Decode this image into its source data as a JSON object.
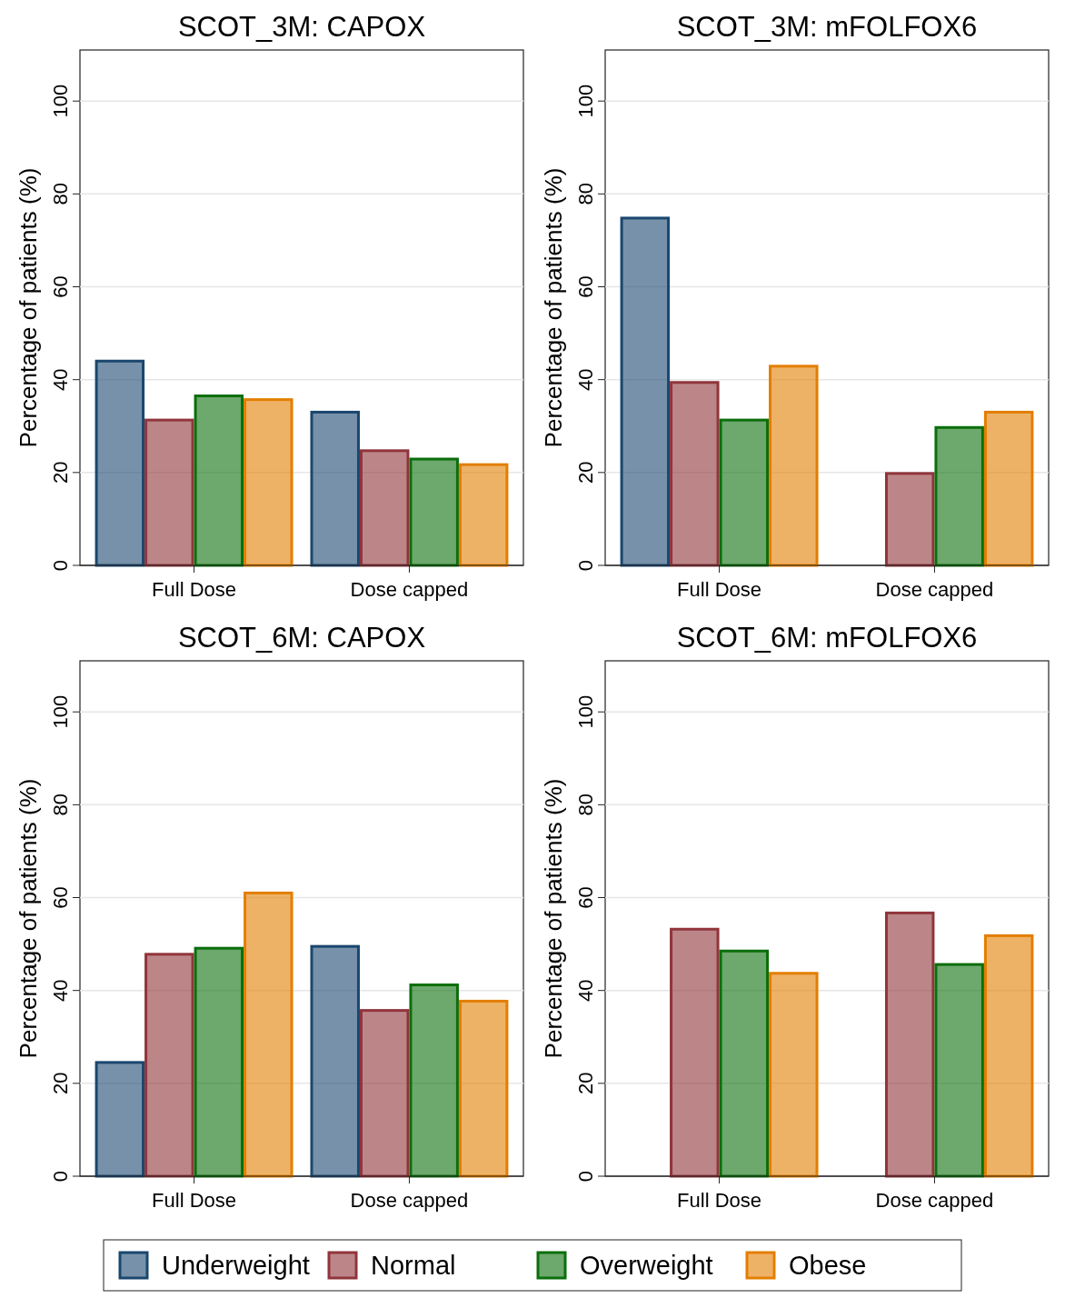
{
  "chart_data": [
    {
      "type": "bar",
      "title": "SCOT_3M: CAPOX",
      "ylabel": "Percentage of patients (%)",
      "categories": [
        "Full Dose",
        "Dose capped"
      ],
      "ylim": [
        0,
        111
      ],
      "yticks": [
        0,
        20,
        40,
        60,
        80,
        100
      ],
      "grid": "y",
      "legend": "bottom",
      "series": [
        {
          "name": "Underweight",
          "color": "#1a476f",
          "values": [
            44,
            33
          ]
        },
        {
          "name": "Normal",
          "color": "#90353b",
          "values": [
            31.3,
            24.7
          ]
        },
        {
          "name": "Overweight",
          "color": "#0b6e0b",
          "values": [
            36.5,
            22.9
          ]
        },
        {
          "name": "Obese",
          "color": "#e37e00",
          "values": [
            35.7,
            21.7
          ]
        }
      ]
    },
    {
      "type": "bar",
      "title": "SCOT_3M: mFOLFOX6",
      "ylabel": "Percentage of patients (%)",
      "categories": [
        "Full Dose",
        "Dose capped"
      ],
      "ylim": [
        0,
        111
      ],
      "yticks": [
        0,
        20,
        40,
        60,
        80,
        100
      ],
      "grid": "y",
      "series": [
        {
          "color": "#1a476f",
          "values": [
            74.8,
            null
          ]
        },
        {
          "color": "#90353b",
          "values": [
            39.4,
            19.8
          ]
        },
        {
          "color": "#0b6e0b",
          "values": [
            31.3,
            29.7
          ]
        },
        {
          "color": "#e37e00",
          "values": [
            42.9,
            33
          ]
        }
      ]
    },
    {
      "type": "bar",
      "title": "SCOT_6M: CAPOX",
      "ylabel": "Percentage of patients (%)",
      "categories": [
        "Full Dose",
        "Dose capped"
      ],
      "ylim": [
        0,
        111
      ],
      "yticks": [
        0,
        20,
        40,
        60,
        80,
        100
      ],
      "grid": "y",
      "series": [
        {
          "color": "#1a476f",
          "values": [
            24.5,
            49.5
          ]
        },
        {
          "color": "#90353b",
          "values": [
            47.8,
            35.7
          ]
        },
        {
          "color": "#0b6e0b",
          "values": [
            49.1,
            41.2
          ]
        },
        {
          "color": "#e37e00",
          "values": [
            61,
            37.7
          ]
        }
      ]
    },
    {
      "type": "bar",
      "title": "SCOT_6M: mFOLFOX6",
      "ylabel": "Percentage of patients (%)",
      "categories": [
        "Full Dose",
        "Dose capped"
      ],
      "ylim": [
        0,
        111
      ],
      "yticks": [
        0,
        20,
        40,
        60,
        80,
        100
      ],
      "grid": "y",
      "series": [
        {
          "values": [
            null,
            null
          ]
        },
        {
          "color": "#90353b",
          "values": [
            53.2,
            56.7
          ]
        },
        {
          "color": "#0b6e0b",
          "values": [
            48.5,
            45.6
          ]
        },
        {
          "color": "#e37e00",
          "values": [
            43.7,
            51.8
          ]
        }
      ]
    }
  ]
}
